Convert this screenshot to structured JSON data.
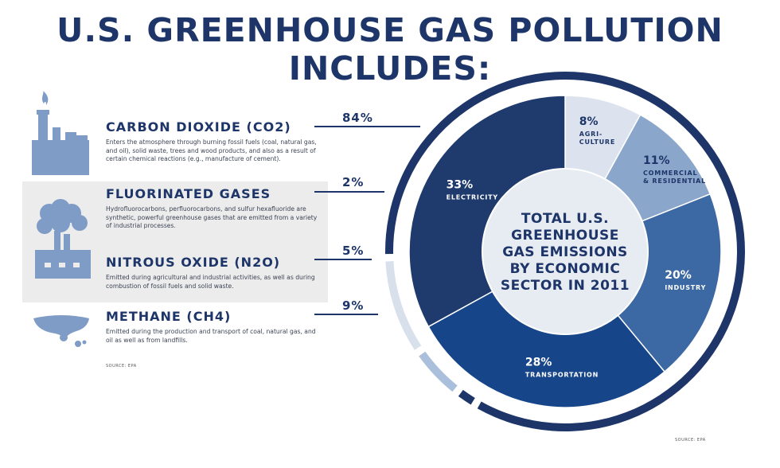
{
  "title": "U.S. GREENHOUSE GAS POLLUTION INCLUDES:",
  "gases": [
    {
      "name": "CARBON DIOXIDE (CO2)",
      "percent": "84%",
      "value": 84,
      "description": "Enters the atmosphere through burning fossil fuels (coal, natural gas, and oil), solid waste, trees and wood products, and also as a result of certain chemical reactions (e.g., manufacture of cement)."
    },
    {
      "name": "FLUORINATED GASES",
      "percent": "2%",
      "value": 2,
      "description": "Hydrofluorocarbons, perfluorocarbons, and sulfur hexafluoride are synthetic, powerful greenhouse gases that are emitted from a variety of industrial processes."
    },
    {
      "name": "NITROUS OXIDE (N2O)",
      "percent": "5%",
      "value": 5,
      "description": "Emitted during agricultural and industrial activities, as well as during combustion of fossil fuels and solid waste."
    },
    {
      "name": "METHANE (CH4)",
      "percent": "9%",
      "value": 9,
      "description": "Emitted during the production and transport of coal, natural gas, and oil as well as from landfills."
    }
  ],
  "source_left": "SOURCE: EPA",
  "source_right": "SOURCE: EPA",
  "center_text": [
    "TOTAL U.S.",
    "GREENHOUSE",
    "GAS EMISSIONS",
    "BY ECONOMIC",
    "SECTOR IN 2011"
  ],
  "chart_data": {
    "type": "pie",
    "title": "TOTAL U.S. GREENHOUSE GAS EMISSIONS BY ECONOMIC SECTOR IN 2011",
    "slices": [
      {
        "label_lines": [
          "ELECTRICITY"
        ],
        "percent": "33%",
        "value": 33
      },
      {
        "label_lines": [
          "AGRI-",
          "CULTURE"
        ],
        "percent": "8%",
        "value": 8
      },
      {
        "label_lines": [
          "COMMERCIAL",
          "& RESIDENTIAL"
        ],
        "percent": "11%",
        "value": 11
      },
      {
        "label_lines": [
          "INDUSTRY"
        ],
        "percent": "20%",
        "value": 20
      },
      {
        "label_lines": [
          "TRANSPORTATION"
        ],
        "percent": "28%",
        "value": 28
      }
    ],
    "outer_ring": [
      {
        "label": "CARBON DIOXIDE (CO2)",
        "value": 84
      },
      {
        "label": "FLUORINATED GASES",
        "value": 2
      },
      {
        "label": "NITROUS OXIDE (N2O)",
        "value": 5
      },
      {
        "label": "METHANE (CH4)",
        "value": 9
      }
    ],
    "colors": {
      "navy": "#1d3568",
      "electricity": "#1f3a6d",
      "agriculture": "#dde3ee",
      "commercial": "#8aa6cb",
      "industry": "#3c68a3",
      "transportation": "#17458a",
      "center": "#e7ebf2",
      "n2o_ring": "#a9bfdb",
      "ch4_ring": "#d8e0ec",
      "icon": "#7f9cc6"
    }
  }
}
